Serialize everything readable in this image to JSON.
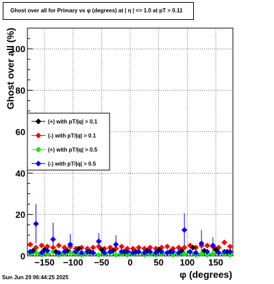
{
  "title": "Ghost over all for Primary vs φ (degrees) at |  η  | <= 1.0 at pT > 0.11",
  "footer": "Sun Jun 29 06:44:25 2025",
  "chart_data": {
    "type": "scatter",
    "title": "Ghost over all for Primary vs φ (degrees) at |  η  | <= 1.0 at pT > 0.11",
    "xlabel": "φ (degrees)",
    "ylabel": "Ghost over all (%)",
    "xlim": [
      -180,
      180
    ],
    "ylim": [
      0,
      110
    ],
    "xticks": [
      -150,
      -100,
      -50,
      0,
      50,
      100,
      150
    ],
    "xtick_labels": [
      "−150",
      "−100",
      "−50",
      "0",
      "50",
      "100",
      "150"
    ],
    "yticks": [
      0,
      20,
      40,
      60,
      80,
      100
    ],
    "ytick_labels": [
      "0",
      "20",
      "40",
      "60",
      "80",
      "100"
    ],
    "grid": true,
    "legend_position": "middle-left",
    "series": [
      {
        "name": "(+) with pT/|q| > 0.1",
        "color": "#000000",
        "marker": "diamond",
        "x": [
          -170,
          -150,
          -130,
          -110,
          -90,
          -70,
          -50,
          -30,
          -10,
          10,
          30,
          50,
          70,
          90,
          110,
          130,
          150,
          170
        ],
        "y": [
          2.5,
          3.0,
          2.0,
          2.5,
          3.5,
          2.0,
          3.0,
          2.5,
          2.0,
          2.0,
          2.5,
          3.0,
          2.0,
          2.5,
          4.0,
          2.5,
          3.0,
          2.0
        ]
      },
      {
        "name": "(-) with pT/|q| > 0.1",
        "color": "#ff0000",
        "marker": "diamond",
        "x": [
          -175,
          -165,
          -155,
          -145,
          -135,
          -125,
          -115,
          -105,
          -95,
          -85,
          -75,
          -65,
          -55,
          -45,
          -35,
          -25,
          -15,
          -5,
          5,
          15,
          25,
          35,
          45,
          55,
          65,
          75,
          85,
          95,
          105,
          115,
          125,
          135,
          145,
          155,
          165,
          175
        ],
        "y": [
          5.5,
          4.0,
          5.0,
          4.5,
          4.0,
          5.0,
          4.0,
          4.5,
          3.5,
          4.0,
          3.5,
          4.0,
          4.5,
          3.5,
          4.0,
          3.5,
          4.5,
          3.5,
          3.5,
          4.0,
          3.5,
          4.0,
          3.5,
          4.0,
          4.5,
          3.5,
          4.0,
          4.0,
          5.0,
          4.0,
          5.0,
          5.0,
          4.5,
          4.0,
          6.5,
          4.5
        ]
      },
      {
        "name": "(+) with pT/|q| > 0.5",
        "color": "#00ee00",
        "marker": "diamond",
        "x": [
          -175,
          -165,
          -155,
          -145,
          -135,
          -125,
          -115,
          -105,
          -95,
          -85,
          -75,
          -65,
          -55,
          -45,
          -35,
          -25,
          -15,
          -5,
          5,
          15,
          25,
          35,
          45,
          55,
          65,
          75,
          85,
          95,
          105,
          115,
          125,
          135,
          145,
          155,
          165,
          175
        ],
        "y": [
          1.0,
          1.5,
          0.5,
          1.0,
          2.0,
          0.5,
          1.0,
          1.5,
          1.0,
          0.5,
          1.0,
          1.5,
          0.5,
          1.0,
          1.5,
          0.5,
          1.0,
          0.5,
          1.0,
          1.5,
          0.5,
          1.0,
          0.5,
          1.0,
          1.5,
          0.5,
          1.0,
          1.0,
          1.5,
          0.5,
          1.0,
          0.5,
          1.0,
          1.5,
          1.0,
          0.5
        ]
      },
      {
        "name": "(-) with pT/|q| > 0.5",
        "color": "#0000ff",
        "marker": "diamond",
        "x": [
          -175,
          -165,
          -155,
          -145,
          -135,
          -125,
          -115,
          -105,
          -95,
          -85,
          -75,
          -65,
          -55,
          -45,
          -35,
          -25,
          -15,
          -5,
          5,
          15,
          25,
          35,
          45,
          55,
          65,
          75,
          85,
          95,
          105,
          115,
          125,
          135,
          145,
          155,
          165,
          175
        ],
        "y": [
          2.0,
          15.5,
          1.5,
          2.5,
          8.0,
          1.5,
          2.0,
          5.5,
          2.0,
          1.5,
          2.0,
          1.5,
          7.0,
          1.5,
          2.0,
          5.5,
          2.0,
          2.0,
          1.5,
          2.0,
          1.5,
          2.0,
          1.5,
          2.0,
          1.5,
          2.0,
          1.5,
          12.5,
          2.0,
          1.5,
          6.0,
          2.0,
          5.0,
          1.5,
          2.0,
          2.0
        ],
        "err": [
          1.0,
          9.5,
          1.0,
          1.5,
          8.0,
          1.0,
          1.0,
          5.0,
          1.0,
          1.0,
          1.0,
          1.0,
          4.0,
          1.0,
          1.0,
          4.5,
          1.0,
          1.0,
          1.0,
          1.0,
          1.0,
          1.0,
          1.0,
          1.0,
          1.0,
          1.0,
          1.0,
          8.0,
          1.0,
          1.0,
          6.5,
          1.0,
          4.0,
          1.0,
          1.0,
          1.0
        ]
      }
    ]
  }
}
